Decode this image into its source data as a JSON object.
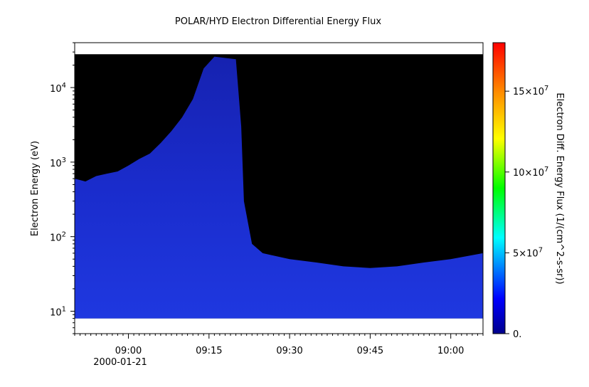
{
  "chart_data": {
    "type": "heatmap",
    "title": "POLAR/HYD  Electron Differential Energy Flux",
    "ylabel": "Electron Energy (eV)",
    "colorbar_label": "Electron Diff. Energy Flux (1/(cm^2-s-sr))",
    "x_axis": {
      "start": "08:50",
      "end": "10:06",
      "date_label": "2000-01-21",
      "ticks": [
        "09:00",
        "09:15",
        "09:30",
        "09:45",
        "10:00"
      ]
    },
    "y_axis": {
      "scale": "log",
      "range_ev": [
        5,
        40000
      ],
      "ticks": [
        {
          "base": "10",
          "exp": "1"
        },
        {
          "base": "10",
          "exp": "2"
        },
        {
          "base": "10",
          "exp": "3"
        },
        {
          "base": "10",
          "exp": "4"
        }
      ]
    },
    "colorbar": {
      "range": [
        0,
        180000000
      ],
      "ticks": [
        {
          "value": 0,
          "mant": "0.",
          "exp": ""
        },
        {
          "value": 50000000,
          "mant": "5×10",
          "exp": "7"
        },
        {
          "value": 100000000,
          "mant": "10×10",
          "exp": "7"
        },
        {
          "value": 150000000,
          "mant": "15×10",
          "exp": "7"
        }
      ],
      "colors": [
        "#00008b",
        "#0000ff",
        "#00ffff",
        "#00ff00",
        "#ffff00",
        "#ff8c00",
        "#ff0000"
      ]
    },
    "fill_color_no_data": "#000000",
    "flux_color": "#1a2fd6",
    "data_energy_range_ev": [
      8,
      28000
    ],
    "flux_envelope": {
      "description": "upper energy bound (eV) of non-zero flux vs time",
      "points": [
        {
          "t": "08:50",
          "e": 600
        },
        {
          "t": "08:52",
          "e": 550
        },
        {
          "t": "08:54",
          "e": 650
        },
        {
          "t": "08:56",
          "e": 700
        },
        {
          "t": "08:58",
          "e": 750
        },
        {
          "t": "09:00",
          "e": 900
        },
        {
          "t": "09:02",
          "e": 1100
        },
        {
          "t": "09:04",
          "e": 1300
        },
        {
          "t": "09:06",
          "e": 1800
        },
        {
          "t": "09:08",
          "e": 2600
        },
        {
          "t": "09:10",
          "e": 4000
        },
        {
          "t": "09:12",
          "e": 7000
        },
        {
          "t": "09:14",
          "e": 18000
        },
        {
          "t": "09:16",
          "e": 26000
        },
        {
          "t": "09:20",
          "e": 24000
        },
        {
          "t": "09:21",
          "e": 3000
        },
        {
          "t": "09:21.5",
          "e": 300
        },
        {
          "t": "09:23",
          "e": 80
        },
        {
          "t": "09:25",
          "e": 60
        },
        {
          "t": "09:30",
          "e": 50
        },
        {
          "t": "09:35",
          "e": 45
        },
        {
          "t": "09:40",
          "e": 40
        },
        {
          "t": "09:45",
          "e": 38
        },
        {
          "t": "09:50",
          "e": 40
        },
        {
          "t": "09:55",
          "e": 45
        },
        {
          "t": "10:00",
          "e": 50
        },
        {
          "t": "10:06",
          "e": 60
        }
      ]
    }
  }
}
